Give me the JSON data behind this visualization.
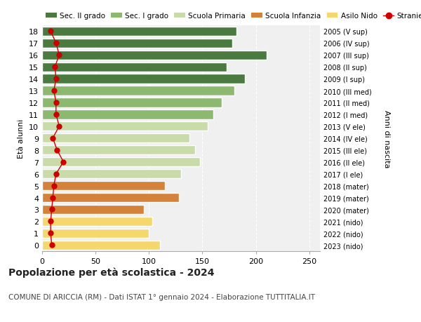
{
  "ages": [
    0,
    1,
    2,
    3,
    4,
    5,
    6,
    7,
    8,
    9,
    10,
    11,
    12,
    13,
    14,
    15,
    16,
    17,
    18
  ],
  "bar_values": [
    110,
    100,
    103,
    95,
    128,
    115,
    130,
    148,
    143,
    138,
    155,
    160,
    168,
    180,
    190,
    173,
    210,
    178,
    182
  ],
  "stranieri_values": [
    9,
    8,
    8,
    9,
    10,
    11,
    13,
    20,
    14,
    10,
    16,
    13,
    13,
    11,
    13,
    12,
    16,
    13,
    8
  ],
  "right_labels": [
    "2023 (nido)",
    "2022 (nido)",
    "2021 (nido)",
    "2020 (mater)",
    "2019 (mater)",
    "2018 (mater)",
    "2017 (I ele)",
    "2016 (II ele)",
    "2015 (III ele)",
    "2014 (IV ele)",
    "2013 (V ele)",
    "2012 (I med)",
    "2011 (II med)",
    "2010 (III med)",
    "2009 (I sup)",
    "2008 (II sup)",
    "2007 (III sup)",
    "2006 (IV sup)",
    "2005 (V sup)"
  ],
  "bar_colors": [
    "#f5d76e",
    "#f5d76e",
    "#f5d76e",
    "#d4813a",
    "#d4813a",
    "#d4813a",
    "#c8dba8",
    "#c8dba8",
    "#c8dba8",
    "#c8dba8",
    "#c8dba8",
    "#8db870",
    "#8db870",
    "#8db870",
    "#4a7a40",
    "#4a7a40",
    "#4a7a40",
    "#4a7a40",
    "#4a7a40"
  ],
  "legend_labels": [
    "Sec. II grado",
    "Sec. I grado",
    "Scuola Primaria",
    "Scuola Infanzia",
    "Asilo Nido",
    "Stranieri"
  ],
  "legend_colors": [
    "#4a7a40",
    "#8db870",
    "#c8dba8",
    "#d4813a",
    "#f5d76e",
    "#cc0000"
  ],
  "stranieri_color": "#cc0000",
  "ylabel_left": "Età alunni",
  "ylabel_right": "Anni di nascita",
  "title": "Popolazione per età scolastica - 2024",
  "subtitle": "COMUNE DI ARICCIA (RM) - Dati ISTAT 1° gennaio 2024 - Elaborazione TUTTITALIA.IT",
  "xlim": [
    0,
    260
  ],
  "xticks": [
    0,
    50,
    100,
    150,
    200,
    250
  ],
  "plot_bg": "#f0f0f0",
  "fig_bg": "#ffffff",
  "grid_color": "#ffffff"
}
